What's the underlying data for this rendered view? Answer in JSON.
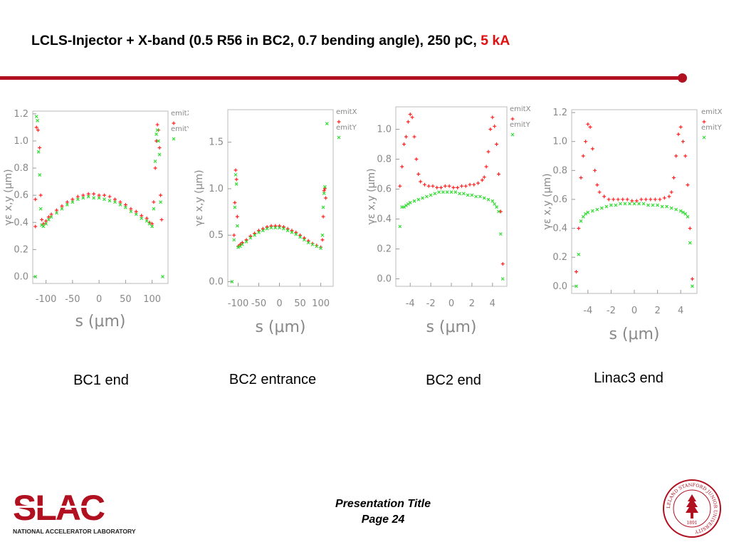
{
  "slide": {
    "title_main": "LCLS-Injector + X-band (0.5 R56 in BC2, 0.7 bending angle), 250 pC, ",
    "title_accent": "5 kA",
    "accent_color": "#e01010",
    "rule_color": "#b01020"
  },
  "captions": [
    "BC1 end",
    "BC2 entrance",
    "BC2 end",
    "Linac3 end"
  ],
  "footer": {
    "line1": "Presentation Title",
    "line2": "Page 24"
  },
  "logo": {
    "text": "SLAC",
    "subtitle": "NATIONAL ACCELERATOR LABORATORY",
    "color": "#b01020"
  },
  "seal": {
    "text": "LELAND STANFORD JUNIOR UNIVERSITY",
    "year": "1891"
  },
  "chart_data": [
    {
      "type": "scatter",
      "title": "BC1 end",
      "xlabel": "s (μm)",
      "ylabel": "γε x,y (μm)",
      "xlim": [
        -125,
        130
      ],
      "ylim": [
        -0.05,
        1.22
      ],
      "xticks": [
        -100,
        -50,
        0,
        50,
        100
      ],
      "xtick_labels": [
        "-100",
        "-50",
        "0",
        "50",
        "100"
      ],
      "yticks": [
        0.0,
        0.2,
        0.4,
        0.6,
        0.8,
        1.0,
        1.2
      ],
      "ytick_labels": [
        "0.0",
        "0.2",
        "0.4",
        "0.6",
        "0.8",
        "1.0",
        "1.2"
      ],
      "legend": [
        "emitX",
        "emitY"
      ],
      "legend_position": "top-right",
      "series": [
        {
          "name": "emitX",
          "color": "#ff2020",
          "marker": "+",
          "x": [
            -120,
            -120,
            -118,
            -115,
            -112,
            -110,
            -108,
            -105,
            -100,
            -95,
            -90,
            -80,
            -70,
            -60,
            -50,
            -40,
            -30,
            -20,
            -10,
            0,
            10,
            20,
            30,
            40,
            50,
            60,
            70,
            80,
            90,
            95,
            100,
            103,
            106,
            108,
            110,
            112,
            114,
            116,
            118
          ],
          "y": [
            0.37,
            0.57,
            1.1,
            1.08,
            0.95,
            0.6,
            0.42,
            0.39,
            0.41,
            0.44,
            0.46,
            0.49,
            0.52,
            0.55,
            0.57,
            0.59,
            0.6,
            0.61,
            0.61,
            0.6,
            0.6,
            0.59,
            0.57,
            0.55,
            0.53,
            0.5,
            0.48,
            0.45,
            0.43,
            0.4,
            0.39,
            0.55,
            0.8,
            1.0,
            1.12,
            1.08,
            0.95,
            0.6,
            0.42
          ]
        },
        {
          "name": "emitY",
          "color": "#33dd33",
          "marker": "x",
          "x": [
            -120,
            -118,
            -116,
            -114,
            -112,
            -110,
            -108,
            -105,
            -100,
            -95,
            -90,
            -80,
            -70,
            -60,
            -50,
            -40,
            -30,
            -20,
            -10,
            0,
            10,
            20,
            30,
            40,
            50,
            60,
            70,
            80,
            90,
            95,
            100,
            103,
            106,
            108,
            110,
            112,
            114,
            116,
            120
          ],
          "y": [
            0.0,
            1.18,
            1.15,
            0.92,
            0.75,
            0.5,
            0.38,
            0.37,
            0.39,
            0.42,
            0.44,
            0.47,
            0.5,
            0.53,
            0.55,
            0.57,
            0.58,
            0.59,
            0.58,
            0.58,
            0.57,
            0.56,
            0.55,
            0.53,
            0.51,
            0.48,
            0.46,
            0.43,
            0.41,
            0.39,
            0.37,
            0.5,
            0.85,
            1.05,
            1.08,
            1.0,
            0.9,
            0.55,
            0.0
          ]
        }
      ]
    },
    {
      "type": "scatter",
      "title": "BC2 entrance",
      "xlabel": "s (μm)",
      "ylabel": "γε x,y (μm)",
      "xlim": [
        -125,
        130
      ],
      "ylim": [
        -0.05,
        1.85
      ],
      "xticks": [
        -100,
        -50,
        0,
        50,
        100
      ],
      "xtick_labels": [
        "-100",
        "-50",
        "0",
        "50",
        "100"
      ],
      "yticks": [
        0.0,
        0.5,
        1.0,
        1.5
      ],
      "ytick_labels": [
        "0.0",
        "0.5",
        "1.0",
        "1.5"
      ],
      "legend": [
        "emitX",
        "emitY"
      ],
      "legend_position": "top-right",
      "series": [
        {
          "name": "emitX",
          "color": "#ff2020",
          "marker": "+",
          "x": [
            -110,
            -108,
            -106,
            -104,
            -102,
            -100,
            -95,
            -90,
            -80,
            -70,
            -60,
            -50,
            -40,
            -30,
            -20,
            -10,
            0,
            10,
            20,
            30,
            40,
            50,
            60,
            70,
            80,
            90,
            100,
            104,
            106,
            108,
            110,
            112
          ],
          "y": [
            0.5,
            0.85,
            1.2,
            1.1,
            0.7,
            0.38,
            0.4,
            0.42,
            0.45,
            0.49,
            0.52,
            0.55,
            0.57,
            0.59,
            0.6,
            0.6,
            0.6,
            0.59,
            0.57,
            0.55,
            0.53,
            0.5,
            0.47,
            0.44,
            0.41,
            0.39,
            0.37,
            0.45,
            0.7,
            0.98,
            1.0,
            0.9
          ]
        },
        {
          "name": "emitY",
          "color": "#33dd33",
          "marker": "x",
          "x": [
            -115,
            -110,
            -108,
            -106,
            -104,
            -102,
            -100,
            -95,
            -90,
            -80,
            -70,
            -60,
            -50,
            -40,
            -30,
            -20,
            -10,
            0,
            10,
            20,
            30,
            40,
            50,
            60,
            70,
            80,
            90,
            100,
            104,
            106,
            108,
            110,
            115
          ],
          "y": [
            0.0,
            0.45,
            0.8,
            1.15,
            1.05,
            0.6,
            0.37,
            0.38,
            0.4,
            0.43,
            0.47,
            0.5,
            0.53,
            0.55,
            0.57,
            0.58,
            0.58,
            0.58,
            0.57,
            0.55,
            0.53,
            0.51,
            0.48,
            0.45,
            0.42,
            0.4,
            0.38,
            0.36,
            0.5,
            0.8,
            0.95,
            1.02,
            1.7
          ]
        }
      ]
    },
    {
      "type": "scatter",
      "title": "BC2 end",
      "xlabel": "s (μm)",
      "ylabel": "γε x,y (μm)",
      "xlim": [
        -5.4,
        5.4
      ],
      "ylim": [
        -0.05,
        1.15
      ],
      "xticks": [
        -4,
        -2,
        0,
        2,
        4
      ],
      "xtick_labels": [
        "-4",
        "-2",
        "0",
        "2",
        "4"
      ],
      "yticks": [
        0.0,
        0.2,
        0.4,
        0.6,
        0.8,
        1.0
      ],
      "ytick_labels": [
        "0.0",
        "0.2",
        "0.4",
        "0.6",
        "0.8",
        "1.0"
      ],
      "legend": [
        "emitX",
        "emitY"
      ],
      "legend_position": "top-right",
      "series": [
        {
          "name": "emitX",
          "color": "#ff2020",
          "marker": "+",
          "x": [
            -5.0,
            -4.8,
            -4.6,
            -4.4,
            -4.2,
            -4.0,
            -3.8,
            -3.6,
            -3.4,
            -3.2,
            -3.0,
            -2.6,
            -2.2,
            -1.8,
            -1.4,
            -1.0,
            -0.6,
            -0.2,
            0.2,
            0.6,
            1.0,
            1.4,
            1.8,
            2.2,
            2.6,
            3.0,
            3.2,
            3.4,
            3.6,
            3.8,
            4.0,
            4.2,
            4.4,
            4.6,
            4.8,
            5.0
          ],
          "y": [
            0.62,
            0.75,
            0.9,
            0.95,
            1.05,
            1.1,
            1.08,
            0.95,
            0.8,
            0.7,
            0.65,
            0.63,
            0.62,
            0.62,
            0.61,
            0.61,
            0.62,
            0.62,
            0.61,
            0.61,
            0.62,
            0.62,
            0.63,
            0.63,
            0.64,
            0.66,
            0.68,
            0.75,
            0.85,
            1.0,
            1.08,
            1.02,
            0.9,
            0.7,
            0.45,
            0.1
          ]
        },
        {
          "name": "emitY",
          "color": "#33dd33",
          "marker": "x",
          "x": [
            -5.0,
            -4.8,
            -4.6,
            -4.4,
            -4.2,
            -4.0,
            -3.6,
            -3.2,
            -2.8,
            -2.4,
            -2.0,
            -1.6,
            -1.2,
            -0.8,
            -0.4,
            0.0,
            0.4,
            0.8,
            1.2,
            1.6,
            2.0,
            2.4,
            2.8,
            3.2,
            3.6,
            4.0,
            4.2,
            4.4,
            4.6,
            4.8,
            5.0
          ],
          "y": [
            0.35,
            0.48,
            0.48,
            0.49,
            0.5,
            0.51,
            0.52,
            0.53,
            0.54,
            0.55,
            0.56,
            0.57,
            0.58,
            0.58,
            0.58,
            0.58,
            0.58,
            0.57,
            0.57,
            0.56,
            0.56,
            0.55,
            0.55,
            0.54,
            0.53,
            0.52,
            0.5,
            0.48,
            0.45,
            0.3,
            0.0
          ]
        }
      ]
    },
    {
      "type": "scatter",
      "title": "Linac3 end",
      "xlabel": "s (μm)",
      "ylabel": "γε x,y (μm)",
      "xlim": [
        -5.4,
        5.4
      ],
      "ylim": [
        -0.05,
        1.22
      ],
      "xticks": [
        -4,
        -2,
        0,
        2,
        4
      ],
      "xtick_labels": [
        "-4",
        "-2",
        "0",
        "2",
        "4"
      ],
      "yticks": [
        0.0,
        0.2,
        0.4,
        0.6,
        0.8,
        1.0,
        1.2
      ],
      "ytick_labels": [
        "0.0",
        "0.2",
        "0.4",
        "0.6",
        "0.8",
        "1.0",
        "1.2"
      ],
      "legend": [
        "emitX",
        "emitY"
      ],
      "legend_position": "top-right",
      "series": [
        {
          "name": "emitX",
          "color": "#ff2020",
          "marker": "+",
          "x": [
            -5.0,
            -4.8,
            -4.6,
            -4.4,
            -4.2,
            -4.0,
            -3.8,
            -3.6,
            -3.4,
            -3.2,
            -3.0,
            -2.6,
            -2.2,
            -1.8,
            -1.4,
            -1.0,
            -0.6,
            -0.2,
            0.2,
            0.6,
            1.0,
            1.4,
            1.8,
            2.2,
            2.6,
            3.0,
            3.2,
            3.4,
            3.6,
            3.8,
            4.0,
            4.2,
            4.4,
            4.6,
            4.8,
            5.0
          ],
          "y": [
            0.1,
            0.4,
            0.75,
            0.9,
            1.0,
            1.12,
            1.1,
            0.95,
            0.8,
            0.7,
            0.65,
            0.62,
            0.6,
            0.6,
            0.6,
            0.6,
            0.6,
            0.59,
            0.59,
            0.6,
            0.6,
            0.6,
            0.6,
            0.6,
            0.61,
            0.62,
            0.65,
            0.75,
            0.9,
            1.05,
            1.1,
            1.0,
            0.9,
            0.7,
            0.4,
            0.05
          ]
        },
        {
          "name": "emitY",
          "color": "#33dd33",
          "marker": "x",
          "x": [
            -5.0,
            -4.8,
            -4.6,
            -4.4,
            -4.2,
            -4.0,
            -3.6,
            -3.2,
            -2.8,
            -2.4,
            -2.0,
            -1.6,
            -1.2,
            -0.8,
            -0.4,
            0.0,
            0.4,
            0.8,
            1.2,
            1.6,
            2.0,
            2.4,
            2.8,
            3.2,
            3.6,
            4.0,
            4.2,
            4.4,
            4.6,
            4.8,
            5.0
          ],
          "y": [
            0.0,
            0.22,
            0.45,
            0.48,
            0.5,
            0.51,
            0.52,
            0.53,
            0.54,
            0.55,
            0.56,
            0.56,
            0.57,
            0.57,
            0.57,
            0.57,
            0.57,
            0.57,
            0.56,
            0.56,
            0.56,
            0.55,
            0.55,
            0.54,
            0.53,
            0.52,
            0.51,
            0.5,
            0.48,
            0.3,
            0.0
          ]
        }
      ]
    }
  ]
}
